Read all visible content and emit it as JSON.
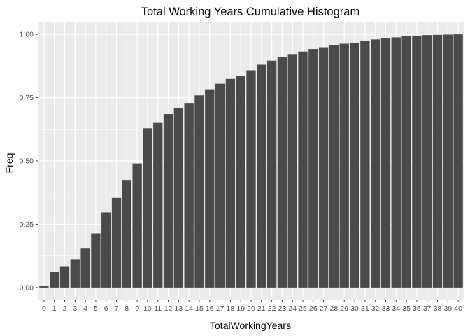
{
  "chart_data": {
    "type": "bar",
    "title": "Total Working Years   Cumulative Histogram",
    "xlabel": "TotalWorkingYears",
    "ylabel": "Freq",
    "categories": [
      "0",
      "1",
      "2",
      "3",
      "4",
      "5",
      "6",
      "7",
      "8",
      "9",
      "10",
      "11",
      "12",
      "13",
      "14",
      "15",
      "16",
      "17",
      "18",
      "19",
      "20",
      "21",
      "22",
      "23",
      "24",
      "25",
      "26",
      "27",
      "28",
      "29",
      "30",
      "31",
      "32",
      "33",
      "34",
      "35",
      "36",
      "37",
      "38",
      "39",
      "40"
    ],
    "values": [
      0.007,
      0.062,
      0.084,
      0.112,
      0.154,
      0.214,
      0.297,
      0.354,
      0.425,
      0.49,
      0.629,
      0.653,
      0.685,
      0.71,
      0.729,
      0.759,
      0.783,
      0.805,
      0.824,
      0.837,
      0.858,
      0.88,
      0.896,
      0.91,
      0.922,
      0.932,
      0.942,
      0.949,
      0.956,
      0.963,
      0.967,
      0.974,
      0.98,
      0.985,
      0.988,
      0.992,
      0.995,
      0.997,
      0.998,
      0.999,
      1.0
    ],
    "yticks": [
      "0.00",
      "0.25",
      "0.50",
      "0.75",
      "1.00"
    ],
    "ytick_values": [
      0,
      0.25,
      0.5,
      0.75,
      1.0
    ],
    "ylim": [
      -0.05,
      1.05
    ],
    "grid": true,
    "colors": {
      "bar": "#4a4a4a",
      "panel": "#ebebeb",
      "grid": "#ffffff",
      "tick_text": "#4d4d4d",
      "tick_mark": "#333333"
    }
  }
}
